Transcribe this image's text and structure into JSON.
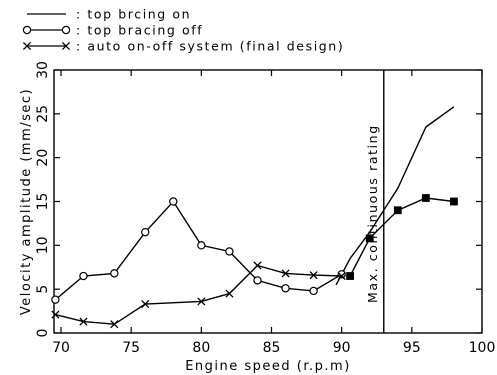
{
  "chart_data": {
    "type": "line",
    "title": "",
    "xlabel": "Engine speed (r.p.m)",
    "ylabel": "Velocity amplitude (mm/sec)",
    "xlim": [
      69.5,
      100
    ],
    "ylim": [
      0,
      30
    ],
    "x_ticks": [
      70,
      75,
      80,
      85,
      90,
      95,
      100
    ],
    "y_ticks": [
      0,
      5,
      10,
      15,
      20,
      25,
      30
    ],
    "legend_position": "above plot, top-left",
    "grid": false,
    "series": [
      {
        "name": "top brcing on",
        "marker": "none",
        "x": [
          89.6,
          90.6,
          92,
          94,
          96,
          98
        ],
        "y": [
          5.5,
          8.5,
          11.5,
          16.5,
          23.5,
          25.8
        ]
      },
      {
        "name": "top bracing off",
        "marker": "circle",
        "x": [
          69.6,
          71.6,
          73.8,
          76,
          78,
          80,
          82,
          84,
          86,
          88,
          90
        ],
        "y": [
          3.8,
          6.5,
          6.8,
          11.5,
          15,
          10,
          9.3,
          6,
          5.1,
          4.8,
          6.7
        ]
      },
      {
        "name": "auto on-off system (final design)",
        "marker": "x",
        "x": [
          69.6,
          71.6,
          73.8,
          76,
          80,
          82,
          84,
          86,
          88,
          90
        ],
        "y": [
          2.1,
          1.3,
          1.0,
          3.3,
          3.6,
          4.5,
          7.7,
          6.8,
          6.6,
          6.5
        ]
      },
      {
        "name": "",
        "marker": "filled-square",
        "x": [
          90.6,
          92,
          94,
          96,
          98
        ],
        "y": [
          6.5,
          10.8,
          14.0,
          15.4,
          15.0
        ]
      }
    ],
    "annotations": [
      {
        "text": "Max. continuous rating",
        "x": 93,
        "orientation": "vertical"
      }
    ],
    "legend_items": [
      {
        "marker": "line",
        "text": ":  top brcing on"
      },
      {
        "marker": "circle",
        "text": ":  top bracing off"
      },
      {
        "marker": "x",
        "text": ":  auto on-off system (final design)"
      }
    ]
  }
}
